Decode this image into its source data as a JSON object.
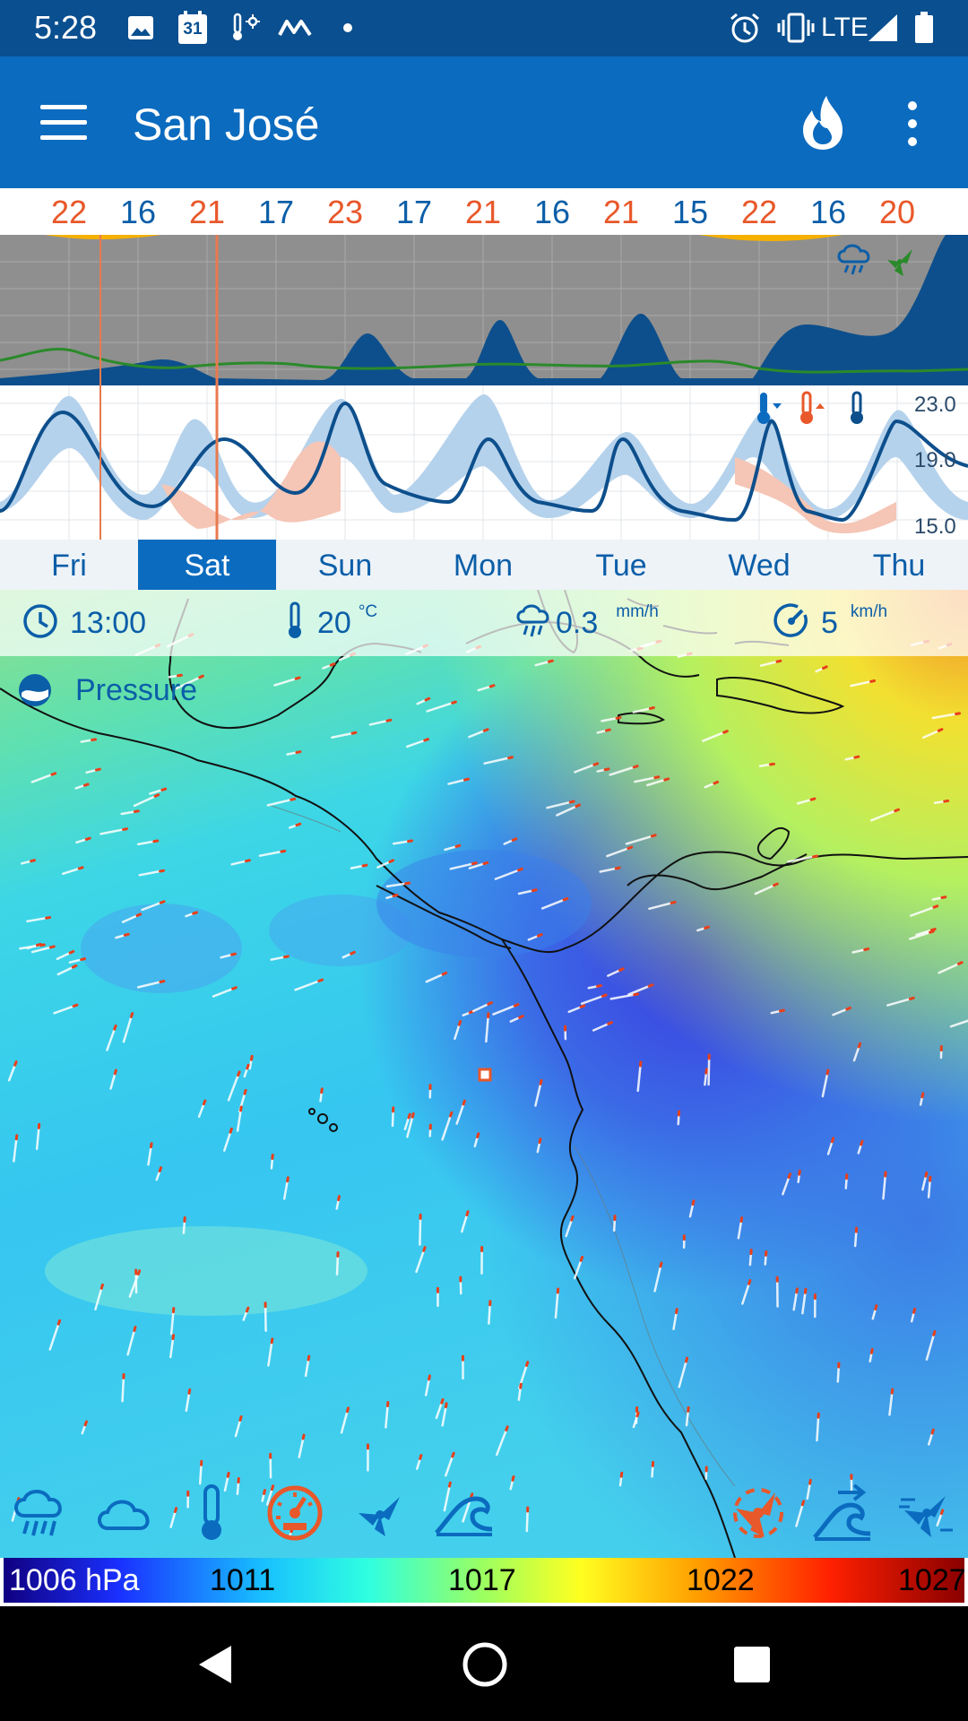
{
  "status_bar": {
    "time": "5:28",
    "calendar_day": "31",
    "network": "LTE",
    "icons": [
      "image-icon",
      "calendar-icon",
      "thermometer-sun-icon",
      "m-logo-icon",
      "dot-icon",
      "alarm-icon",
      "vibrate-icon",
      "signal-icon",
      "battery-icon"
    ]
  },
  "app_bar": {
    "title": "San José",
    "icons": [
      "menu-icon",
      "fire-icon",
      "more-vert-icon"
    ]
  },
  "temp_strip": {
    "values": [
      "22",
      "16",
      "21",
      "17",
      "23",
      "17",
      "21",
      "16",
      "21",
      "15",
      "22",
      "16",
      "20"
    ],
    "high_color": "#e8582a",
    "low_color": "#0b5ea8"
  },
  "charts": {
    "precip_icons": [
      "rain-icon",
      "wind-icon"
    ],
    "temp_icons": [
      "thermometer-down-icon",
      "thermometer-up-icon",
      "thermometer-icon"
    ],
    "temp_axis": [
      "23.0",
      "19.0",
      "15.0"
    ]
  },
  "days": {
    "items": [
      "Fri",
      "Sat",
      "Sun",
      "Mon",
      "Tue",
      "Wed",
      "Thu"
    ],
    "selected": "Sat"
  },
  "info_bar": {
    "time": "13:00",
    "temperature": "20",
    "temperature_unit": "°C",
    "precip": "0.3",
    "precip_unit": "mm/h",
    "wind": "5",
    "wind_unit": "km/h"
  },
  "layer": {
    "label": "Pressure"
  },
  "toolbar": {
    "items": [
      "rain-layer-icon",
      "cloud-layer-icon",
      "temperature-layer-icon",
      "pressure-layer-icon",
      "wind-layer-icon",
      "waves-layer-icon",
      "wind-gust-layer-icon",
      "swell-layer-icon",
      "wind-animation-icon"
    ],
    "active": "pressure-layer-icon"
  },
  "scale": {
    "labels": [
      "1006 hPa",
      "1011",
      "1017",
      "1022",
      "1027"
    ]
  },
  "colors": {
    "status_bar": "#0a4f8f",
    "app_bar": "#0b6bbf",
    "accent": "#0b5ea8",
    "orange": "#e8582a"
  }
}
